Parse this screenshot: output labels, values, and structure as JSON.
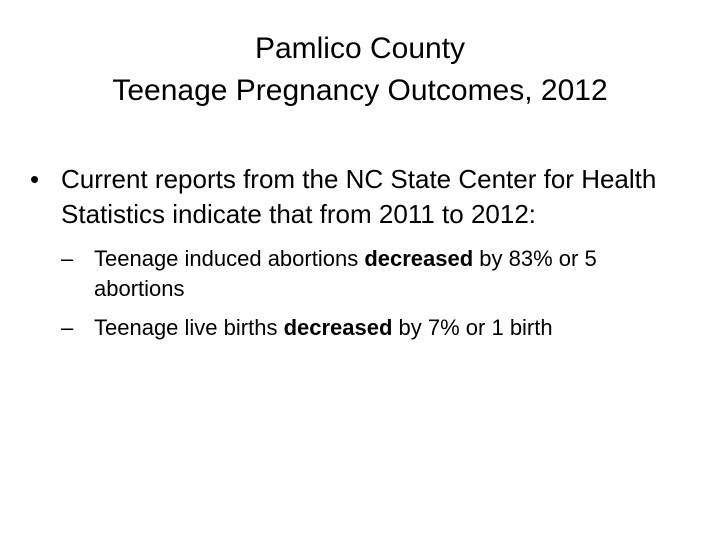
{
  "title": {
    "line1": "Pamlico County",
    "line2": "Teenage Pregnancy Outcomes, 2012"
  },
  "bullet": {
    "mark": "•",
    "text": "Current reports from the NC State Center for Health Statistics indicate that from 2011 to 2012:"
  },
  "sub_items": [
    {
      "mark": "–",
      "before": "Teenage induced abortions ",
      "emphasis": "decreased",
      "after": " by 83% or 5 abortions"
    },
    {
      "mark": "–",
      "before": "Teenage live births ",
      "emphasis": "decreased",
      "after": " by 7% or 1 birth"
    }
  ]
}
